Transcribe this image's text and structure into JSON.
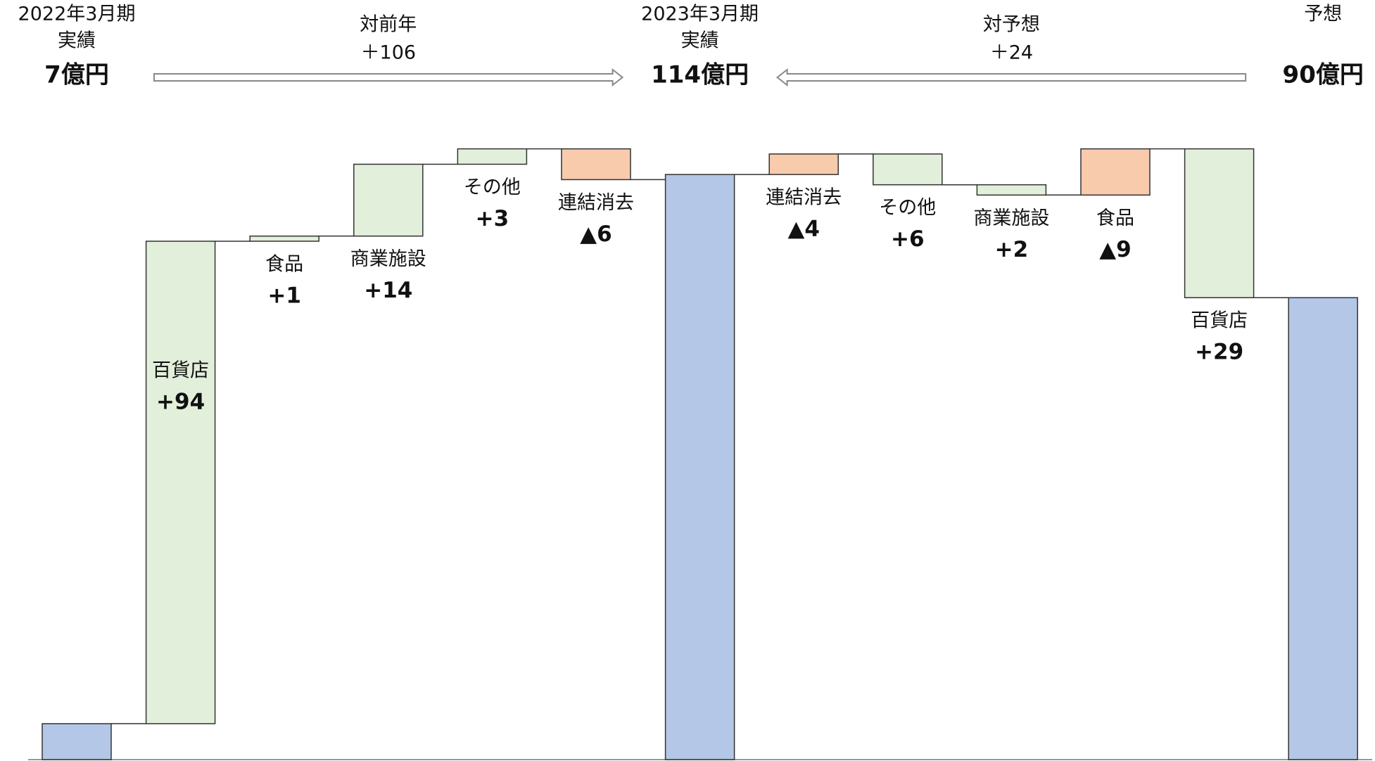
{
  "chart_data": {
    "type": "waterfall",
    "ylim": [
      0,
      148
    ],
    "colors": {
      "total": "#b4c7e7",
      "increase": "#e2efda",
      "decrease": "#f8cbad"
    },
    "totals": [
      {
        "labels": [
          "2022年3月期",
          "実績"
        ],
        "value": 7,
        "value_label": "7億円"
      },
      {
        "labels": [
          "2023年3月期",
          "実績"
        ],
        "value": 114,
        "value_label": "114億円"
      },
      {
        "labels": [
          "予想"
        ],
        "value": 90,
        "value_label": "90億円"
      }
    ],
    "groups": [
      {
        "direction": "right",
        "comparison": {
          "label": "対前年",
          "value": 106,
          "value_label": "＋106"
        },
        "categories": [
          "百貨店",
          "食品",
          "商業施設",
          "その他",
          "連結消去"
        ],
        "values": [
          94,
          1,
          14,
          3,
          -6
        ],
        "value_labels": [
          "+94",
          "+1",
          "+14",
          "+3",
          "▲6"
        ]
      },
      {
        "direction": "left",
        "comparison": {
          "label": "対予想",
          "value": 24,
          "value_label": "＋24"
        },
        "categories": [
          "百貨店",
          "食品",
          "商業施設",
          "その他",
          "連結消去"
        ],
        "values": [
          29,
          -9,
          2,
          6,
          -4
        ],
        "value_labels": [
          "+29",
          "▲9",
          "+2",
          "+6",
          "▲4"
        ]
      }
    ]
  }
}
